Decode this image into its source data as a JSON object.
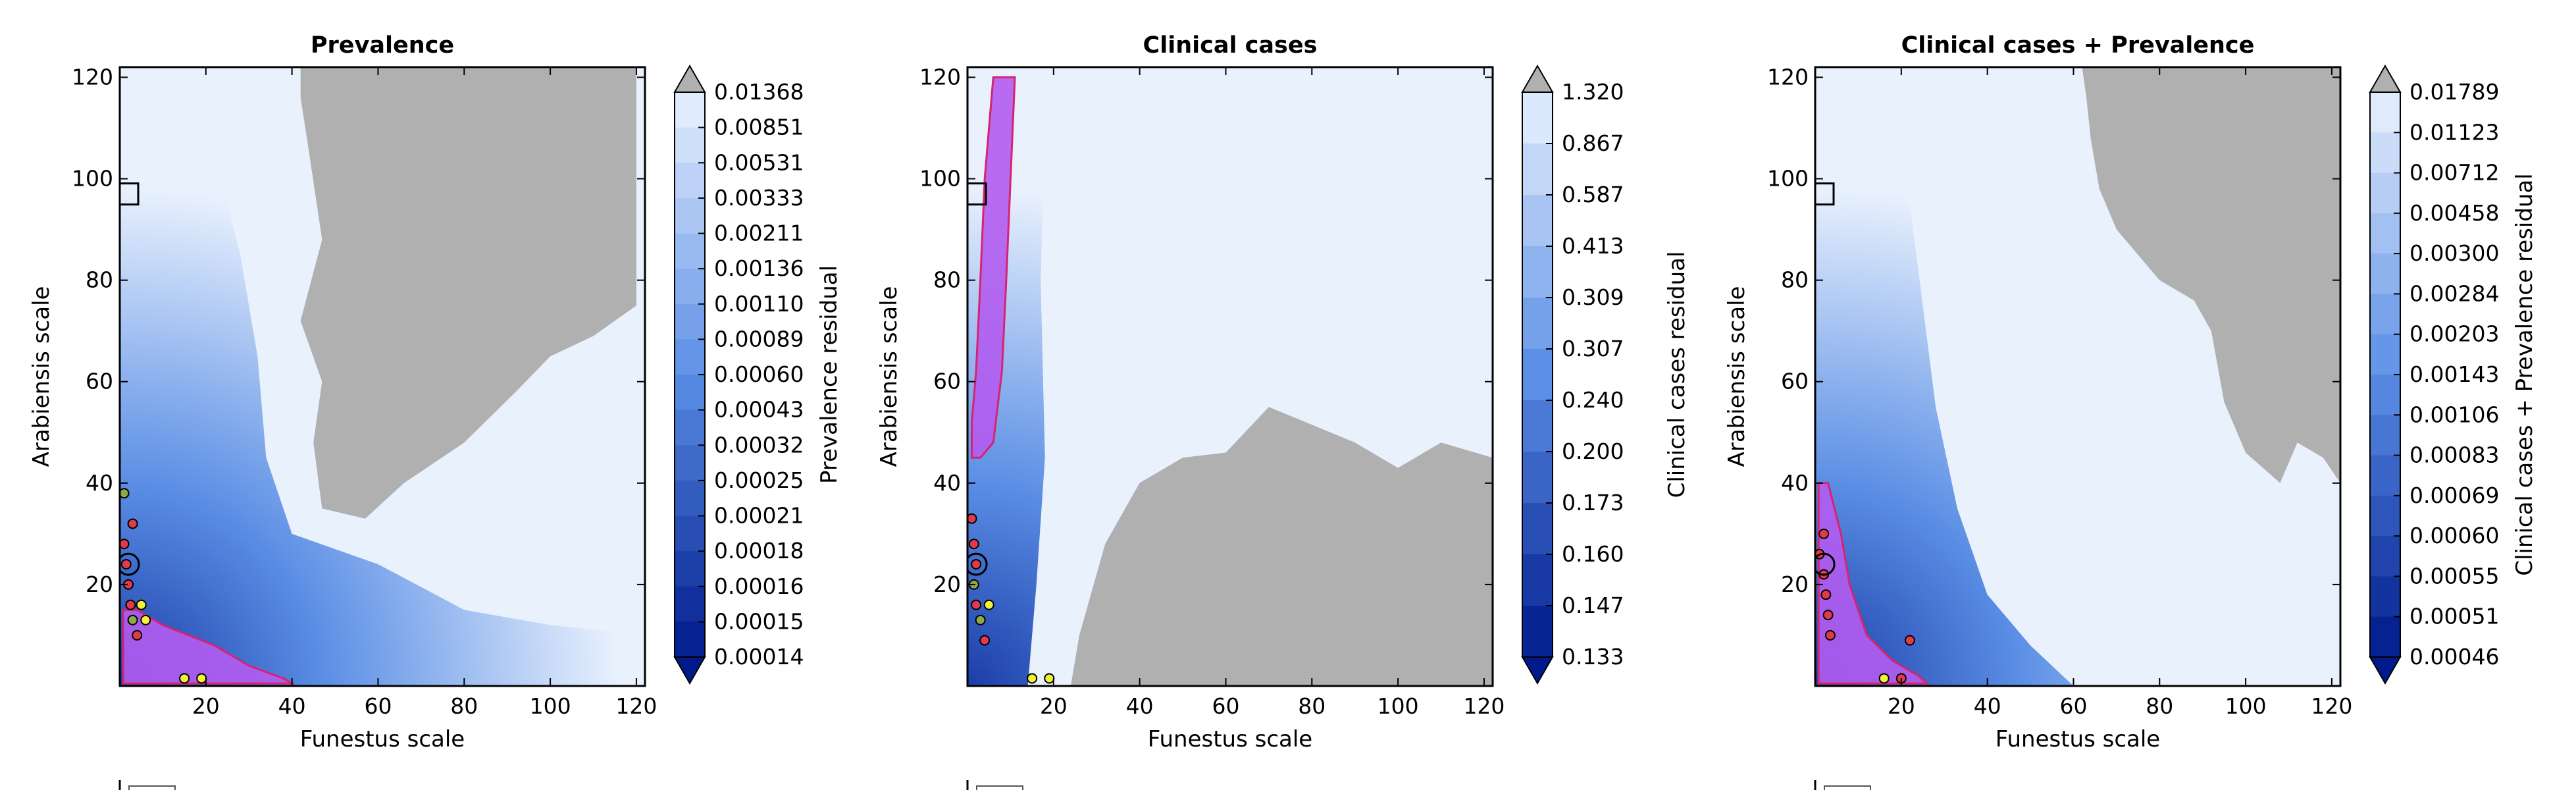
{
  "figure": {
    "background": "#ffffff"
  },
  "colors": {
    "masked": "#b0b0b0",
    "cmap_dark": "#001a8c",
    "cmap_mid": "#5b8fe6",
    "cmap_light": "#e9f1fd",
    "pct_fill": "#b35cf0",
    "pct_stroke": "#d6246f",
    "marker_red": "#e23a4a",
    "marker_yellow": "#f3f23a",
    "marker_olive": "#8fa84a",
    "best_box": "#000000"
  },
  "chart_data": [
    {
      "type": "heatmap",
      "title": "Prevalence",
      "xlabel": "Funestus scale",
      "ylabel": "Arabiensis scale",
      "xlim": [
        0,
        122
      ],
      "ylim": [
        0,
        122
      ],
      "xticks": [
        "20",
        "40",
        "60",
        "80",
        "100",
        "120"
      ],
      "yticks": [
        "20",
        "40",
        "60",
        "80",
        "100",
        "120"
      ],
      "colorbar_label": "Prevalence residual",
      "colorbar_ticks": [
        "0.01368",
        "0.00851",
        "0.00531",
        "0.00333",
        "0.00211",
        "0.00136",
        "0.00110",
        "0.00089",
        "0.00060",
        "0.00043",
        "0.00032",
        "0.00025",
        "0.00021",
        "0.00018",
        "0.00016",
        "0.00015",
        "0.00014"
      ],
      "masked_region": [
        [
          42,
          122
        ],
        [
          120,
          122
        ],
        [
          120,
          75
        ],
        [
          110,
          69
        ],
        [
          100,
          65
        ],
        [
          92,
          58
        ],
        [
          80,
          48
        ],
        [
          66,
          40
        ],
        [
          57,
          33
        ],
        [
          47,
          35
        ],
        [
          45,
          48
        ],
        [
          47,
          60
        ],
        [
          42,
          72
        ],
        [
          47,
          88
        ],
        [
          44,
          105
        ],
        [
          42,
          116
        ]
      ],
      "white_region": [
        [
          18,
          122
        ],
        [
          42,
          122
        ],
        [
          44,
          105
        ],
        [
          47,
          88
        ],
        [
          42,
          72
        ],
        [
          47,
          60
        ],
        [
          45,
          48
        ],
        [
          47,
          35
        ],
        [
          57,
          33
        ],
        [
          66,
          40
        ],
        [
          80,
          48
        ],
        [
          92,
          58
        ],
        [
          100,
          65
        ],
        [
          110,
          69
        ],
        [
          120,
          75
        ],
        [
          122,
          75
        ],
        [
          122,
          10
        ],
        [
          100,
          12
        ],
        [
          80,
          15
        ],
        [
          60,
          24
        ],
        [
          40,
          30
        ],
        [
          34,
          45
        ],
        [
          32,
          65
        ],
        [
          28,
          85
        ],
        [
          22,
          105
        ]
      ],
      "best_region": [
        [
          0.8,
          0.5
        ],
        [
          0.8,
          15
        ],
        [
          4,
          15
        ],
        [
          10,
          12
        ],
        [
          22,
          8
        ],
        [
          30,
          4
        ],
        [
          38,
          1.5
        ],
        [
          40,
          0.5
        ]
      ],
      "markers": [
        {
          "x": 1,
          "y": 28,
          "color": "red"
        },
        {
          "x": 1.5,
          "y": 24,
          "color": "red"
        },
        {
          "x": 2,
          "y": 20,
          "color": "red"
        },
        {
          "x": 2.5,
          "y": 16,
          "color": "red"
        },
        {
          "x": 3,
          "y": 13,
          "color": "olive"
        },
        {
          "x": 5,
          "y": 16,
          "color": "yellow"
        },
        {
          "x": 4,
          "y": 10,
          "color": "red"
        },
        {
          "x": 6,
          "y": 13,
          "color": "yellow"
        },
        {
          "x": 3,
          "y": 32,
          "color": "red"
        },
        {
          "x": 1,
          "y": 38,
          "color": "olive"
        },
        {
          "x": 15,
          "y": 1.5,
          "color": "yellow"
        },
        {
          "x": 19,
          "y": 1.5,
          "color": "yellow"
        }
      ],
      "best_box": {
        "x": 0,
        "y": 97
      }
    },
    {
      "type": "heatmap",
      "title": "Clinical cases",
      "xlabel": "Funestus scale",
      "ylabel": "Arabiensis scale",
      "xlim": [
        0,
        122
      ],
      "ylim": [
        0,
        122
      ],
      "xticks": [
        "20",
        "40",
        "60",
        "80",
        "100",
        "120"
      ],
      "yticks": [
        "20",
        "40",
        "60",
        "80",
        "100",
        "120"
      ],
      "colorbar_label": "Clinical cases residual",
      "colorbar_ticks": [
        "1.320",
        "0.867",
        "0.587",
        "0.413",
        "0.309",
        "0.307",
        "0.240",
        "0.200",
        "0.173",
        "0.160",
        "0.147",
        "0.133"
      ],
      "masked_region": [
        [
          28,
          0
        ],
        [
          122,
          0
        ],
        [
          122,
          45
        ],
        [
          110,
          48
        ],
        [
          100,
          43
        ],
        [
          90,
          48
        ],
        [
          70,
          55
        ],
        [
          60,
          46
        ],
        [
          50,
          45
        ],
        [
          40,
          40
        ],
        [
          32,
          28
        ],
        [
          26,
          10
        ],
        [
          24,
          0
        ]
      ],
      "white_region": [
        [
          18,
          122
        ],
        [
          122,
          122
        ],
        [
          122,
          45
        ],
        [
          110,
          48
        ],
        [
          100,
          43
        ],
        [
          90,
          48
        ],
        [
          70,
          55
        ],
        [
          60,
          46
        ],
        [
          50,
          45
        ],
        [
          40,
          40
        ],
        [
          32,
          28
        ],
        [
          26,
          10
        ],
        [
          24,
          0
        ],
        [
          14,
          0
        ],
        [
          16,
          20
        ],
        [
          18,
          45
        ],
        [
          17,
          80
        ],
        [
          18,
          110
        ]
      ],
      "best_region": [
        [
          1,
          45
        ],
        [
          3,
          45
        ],
        [
          6,
          48
        ],
        [
          8,
          62
        ],
        [
          9,
          80
        ],
        [
          10,
          100
        ],
        [
          11,
          120
        ],
        [
          6,
          120
        ],
        [
          4,
          100
        ],
        [
          3,
          80
        ],
        [
          2,
          62
        ],
        [
          1,
          52
        ]
      ],
      "markers": [
        {
          "x": 1,
          "y": 33,
          "color": "red"
        },
        {
          "x": 1.5,
          "y": 28,
          "color": "red"
        },
        {
          "x": 2,
          "y": 24,
          "color": "red"
        },
        {
          "x": 1.5,
          "y": 20,
          "color": "olive"
        },
        {
          "x": 2,
          "y": 16,
          "color": "red"
        },
        {
          "x": 3,
          "y": 13,
          "color": "olive"
        },
        {
          "x": 5,
          "y": 16,
          "color": "yellow"
        },
        {
          "x": 4,
          "y": 9,
          "color": "red"
        },
        {
          "x": 15,
          "y": 1.5,
          "color": "yellow"
        },
        {
          "x": 19,
          "y": 1.5,
          "color": "yellow"
        }
      ],
      "best_box": {
        "x": 0,
        "y": 97
      }
    },
    {
      "type": "heatmap",
      "title": "Clinical cases + Prevalence",
      "xlabel": "Funestus scale",
      "ylabel": "Arabiensis scale",
      "xlim": [
        0,
        122
      ],
      "ylim": [
        0,
        122
      ],
      "xticks": [
        "20",
        "40",
        "60",
        "80",
        "100",
        "120"
      ],
      "yticks": [
        "20",
        "40",
        "60",
        "80",
        "100",
        "120"
      ],
      "colorbar_label": "Clinical cases + Prevalence residual",
      "colorbar_ticks": [
        "0.01789",
        "0.01123",
        "0.00712",
        "0.00458",
        "0.00300",
        "0.00284",
        "0.00203",
        "0.00143",
        "0.00106",
        "0.00083",
        "0.00069",
        "0.00060",
        "0.00055",
        "0.00051",
        "0.00046"
      ],
      "masked_region": [
        [
          62,
          122
        ],
        [
          122,
          122
        ],
        [
          122,
          40
        ],
        [
          118,
          45
        ],
        [
          112,
          48
        ],
        [
          108,
          40
        ],
        [
          100,
          46
        ],
        [
          95,
          56
        ],
        [
          92,
          70
        ],
        [
          88,
          76
        ],
        [
          80,
          80
        ],
        [
          70,
          90
        ],
        [
          66,
          98
        ],
        [
          64,
          108
        ],
        [
          63,
          116
        ]
      ],
      "white_region": [
        [
          16,
          122
        ],
        [
          62,
          122
        ],
        [
          63,
          116
        ],
        [
          64,
          108
        ],
        [
          66,
          98
        ],
        [
          70,
          90
        ],
        [
          80,
          80
        ],
        [
          88,
          76
        ],
        [
          92,
          70
        ],
        [
          95,
          56
        ],
        [
          100,
          46
        ],
        [
          108,
          40
        ],
        [
          112,
          48
        ],
        [
          118,
          45
        ],
        [
          122,
          40
        ],
        [
          122,
          0
        ],
        [
          60,
          0
        ],
        [
          50,
          8
        ],
        [
          40,
          18
        ],
        [
          33,
          35
        ],
        [
          28,
          55
        ],
        [
          25,
          75
        ],
        [
          22,
          95
        ],
        [
          20,
          112
        ]
      ],
      "best_region": [
        [
          0.8,
          0.5
        ],
        [
          0.8,
          40
        ],
        [
          3,
          40
        ],
        [
          6,
          30
        ],
        [
          8,
          20
        ],
        [
          12,
          10
        ],
        [
          18,
          5
        ],
        [
          24,
          2
        ],
        [
          26,
          0.5
        ]
      ],
      "markers": [
        {
          "x": 1,
          "y": 26,
          "color": "red"
        },
        {
          "x": 2,
          "y": 22,
          "color": "red"
        },
        {
          "x": 2.5,
          "y": 18,
          "color": "red"
        },
        {
          "x": 3,
          "y": 14,
          "color": "red"
        },
        {
          "x": 3.5,
          "y": 10,
          "color": "red"
        },
        {
          "x": 2,
          "y": 30,
          "color": "red"
        },
        {
          "x": 16,
          "y": 1.5,
          "color": "yellow"
        },
        {
          "x": 20,
          "y": 1.5,
          "color": "red"
        },
        {
          "x": 22,
          "y": 9,
          "color": "red"
        }
      ],
      "best_box": {
        "x": 0,
        "y": 97
      }
    }
  ]
}
